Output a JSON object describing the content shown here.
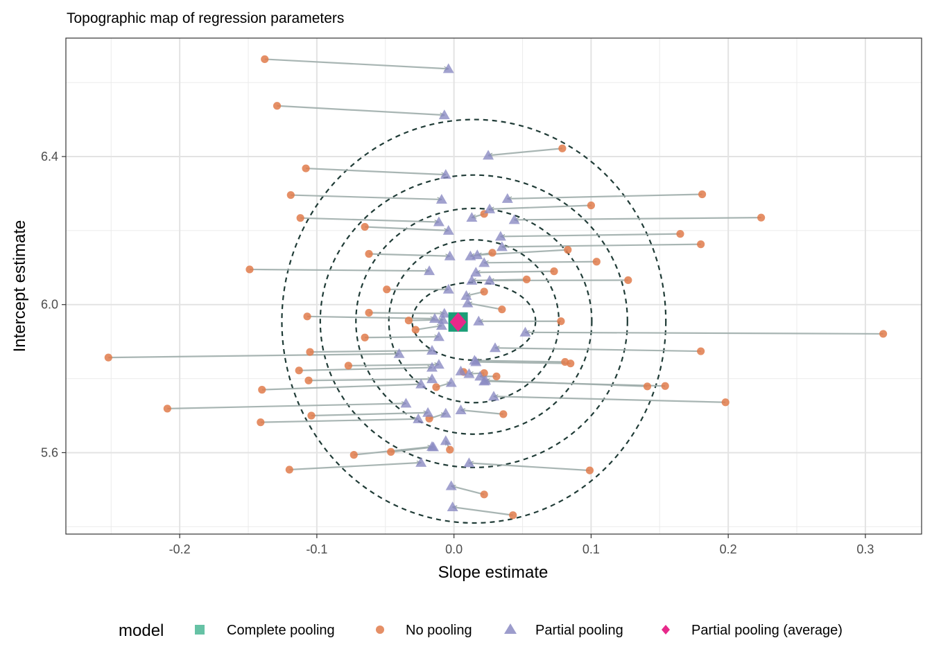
{
  "chart_data": {
    "type": "scatter",
    "title": "Topographic map of regression parameters",
    "xlabel": "Slope estimate",
    "ylabel": "Intercept estimate",
    "xlim": [
      -0.283,
      0.341
    ],
    "ylim": [
      5.38,
      6.72
    ],
    "x_ticks": [
      -0.2,
      -0.1,
      0.0,
      0.1,
      0.2,
      0.3
    ],
    "x_tick_labels": [
      "-0.2",
      "-0.1",
      "0.0",
      "0.1",
      "0.2",
      "0.3"
    ],
    "y_ticks": [
      5.6,
      6.0,
      6.4
    ],
    "y_tick_labels": [
      "5.6",
      "6.0",
      "6.4"
    ],
    "grid": true,
    "legend": {
      "title": "model",
      "position": "bottom",
      "entries": [
        {
          "label": "Complete pooling",
          "shape": "square",
          "color": "#66C2A5"
        },
        {
          "label": "No pooling",
          "shape": "circle",
          "color": "#E07B4B"
        },
        {
          "label": "Partial pooling",
          "shape": "triangle",
          "color": "#8B8BC3"
        },
        {
          "label": "Partial pooling (average)",
          "shape": "diamond",
          "color": "#E7298A"
        }
      ]
    },
    "colors": {
      "complete": "#1B9E77",
      "no_pooling": "#E07B4B",
      "partial": "#8B8BC3",
      "average": "#E7298A",
      "arrow": "#9FADAB",
      "contour": "#1F3B36"
    },
    "contour_center": [
      0.0145,
      5.955
    ],
    "contour_semi_axes": [
      [
        0.045,
        0.105
      ],
      [
        0.062,
        0.22
      ],
      [
        0.086,
        0.305
      ],
      [
        0.112,
        0.395
      ],
      [
        0.14,
        0.545
      ]
    ],
    "complete_pooling": {
      "x": 0.003,
      "y": 5.953
    },
    "partial_pooling_average": {
      "x": 0.003,
      "y": 5.953
    },
    "pairs": [
      {
        "no_pooling": [
          -0.138,
          6.663
        ],
        "partial": [
          -0.004,
          6.637
        ]
      },
      {
        "no_pooling": [
          -0.129,
          6.537
        ],
        "partial": [
          -0.007,
          6.512
        ]
      },
      {
        "no_pooling": [
          0.079,
          6.422
        ],
        "partial": [
          0.025,
          6.403
        ]
      },
      {
        "no_pooling": [
          -0.108,
          6.368
        ],
        "partial": [
          -0.006,
          6.351
        ]
      },
      {
        "no_pooling": [
          -0.119,
          6.296
        ],
        "partial": [
          -0.009,
          6.284
        ]
      },
      {
        "no_pooling": [
          0.181,
          6.298
        ],
        "partial": [
          0.039,
          6.286
        ]
      },
      {
        "no_pooling": [
          0.1,
          6.268
        ],
        "partial": [
          0.026,
          6.258
        ]
      },
      {
        "no_pooling": [
          -0.112,
          6.234
        ],
        "partial": [
          -0.011,
          6.223
        ]
      },
      {
        "no_pooling": [
          0.224,
          6.235
        ],
        "partial": [
          0.044,
          6.229
        ]
      },
      {
        "no_pooling": [
          0.022,
          6.245
        ],
        "partial": [
          0.013,
          6.235
        ]
      },
      {
        "no_pooling": [
          -0.065,
          6.21
        ],
        "partial": [
          -0.004,
          6.2
        ]
      },
      {
        "no_pooling": [
          0.165,
          6.191
        ],
        "partial": [
          0.034,
          6.184
        ]
      },
      {
        "no_pooling": [
          0.18,
          6.163
        ],
        "partial": [
          0.035,
          6.156
        ]
      },
      {
        "no_pooling": [
          0.083,
          6.148
        ],
        "partial": [
          0.017,
          6.134
        ]
      },
      {
        "no_pooling": [
          -0.062,
          6.137
        ],
        "partial": [
          -0.003,
          6.131
        ]
      },
      {
        "no_pooling": [
          0.028,
          6.14
        ],
        "partial": [
          0.012,
          6.131
        ]
      },
      {
        "no_pooling": [
          0.104,
          6.116
        ],
        "partial": [
          0.022,
          6.113
        ]
      },
      {
        "no_pooling": [
          -0.149,
          6.095
        ],
        "partial": [
          -0.018,
          6.091
        ]
      },
      {
        "no_pooling": [
          0.073,
          6.09
        ],
        "partial": [
          0.016,
          6.087
        ]
      },
      {
        "no_pooling": [
          0.127,
          6.066
        ],
        "partial": [
          0.026,
          6.065
        ]
      },
      {
        "no_pooling": [
          0.053,
          6.068
        ],
        "partial": [
          0.013,
          6.065
        ]
      },
      {
        "no_pooling": [
          -0.049,
          6.041
        ],
        "partial": [
          -0.004,
          6.041
        ]
      },
      {
        "no_pooling": [
          0.022,
          6.035
        ],
        "partial": [
          0.009,
          6.024
        ]
      },
      {
        "no_pooling": [
          0.035,
          5.987
        ],
        "partial": [
          0.01,
          6.004
        ]
      },
      {
        "no_pooling": [
          -0.062,
          5.978
        ],
        "partial": [
          -0.007,
          5.976
        ]
      },
      {
        "no_pooling": [
          -0.107,
          5.968
        ],
        "partial": [
          -0.014,
          5.962
        ]
      },
      {
        "no_pooling": [
          0.078,
          5.955
        ],
        "partial": [
          0.018,
          5.955
        ]
      },
      {
        "no_pooling": [
          -0.033,
          5.957
        ],
        "partial": [
          -0.008,
          5.959
        ]
      },
      {
        "no_pooling": [
          -0.028,
          5.932
        ],
        "partial": [
          -0.009,
          5.943
        ]
      },
      {
        "no_pooling": [
          0.313,
          5.921
        ],
        "partial": [
          0.052,
          5.925
        ]
      },
      {
        "no_pooling": [
          -0.065,
          5.911
        ],
        "partial": [
          -0.011,
          5.913
        ]
      },
      {
        "no_pooling": [
          0.18,
          5.874
        ],
        "partial": [
          0.03,
          5.883
        ]
      },
      {
        "no_pooling": [
          -0.105,
          5.872
        ],
        "partial": [
          -0.016,
          5.876
        ]
      },
      {
        "no_pooling": [
          -0.252,
          5.857
        ],
        "partial": [
          -0.04,
          5.867
        ]
      },
      {
        "no_pooling": [
          0.081,
          5.845
        ],
        "partial": [
          0.015,
          5.849
        ]
      },
      {
        "no_pooling": [
          0.085,
          5.841
        ],
        "partial": [
          0.016,
          5.845
        ]
      },
      {
        "no_pooling": [
          -0.077,
          5.835
        ],
        "partial": [
          -0.011,
          5.838
        ]
      },
      {
        "no_pooling": [
          -0.113,
          5.822
        ],
        "partial": [
          -0.016,
          5.83
        ]
      },
      {
        "no_pooling": [
          0.007,
          5.818
        ],
        "partial": [
          0.005,
          5.82
        ]
      },
      {
        "no_pooling": [
          0.031,
          5.806
        ],
        "partial": [
          0.019,
          5.806
        ]
      },
      {
        "no_pooling": [
          0.022,
          5.815
        ],
        "partial": [
          0.011,
          5.813
        ]
      },
      {
        "no_pooling": [
          -0.106,
          5.795
        ],
        "partial": [
          -0.016,
          5.799
        ]
      },
      {
        "no_pooling": [
          0.141,
          5.779
        ],
        "partial": [
          0.023,
          5.795
        ]
      },
      {
        "no_pooling": [
          0.154,
          5.78
        ],
        "partial": [
          0.022,
          5.793
        ]
      },
      {
        "no_pooling": [
          -0.013,
          5.777
        ],
        "partial": [
          -0.002,
          5.789
        ]
      },
      {
        "no_pooling": [
          -0.14,
          5.77
        ],
        "partial": [
          -0.024,
          5.785
        ]
      },
      {
        "no_pooling": [
          0.198,
          5.736
        ],
        "partial": [
          0.029,
          5.752
        ]
      },
      {
        "no_pooling": [
          -0.209,
          5.719
        ],
        "partial": [
          -0.035,
          5.733
        ]
      },
      {
        "no_pooling": [
          -0.104,
          5.7
        ],
        "partial": [
          -0.019,
          5.708
        ]
      },
      {
        "no_pooling": [
          0.036,
          5.704
        ],
        "partial": [
          0.005,
          5.715
        ]
      },
      {
        "no_pooling": [
          -0.141,
          5.682
        ],
        "partial": [
          -0.026,
          5.691
        ]
      },
      {
        "no_pooling": [
          -0.018,
          5.692
        ],
        "partial": [
          -0.006,
          5.706
        ]
      },
      {
        "no_pooling": [
          -0.003,
          5.608
        ],
        "partial": [
          -0.006,
          5.632
        ]
      },
      {
        "no_pooling": [
          -0.046,
          5.602
        ],
        "partial": [
          -0.015,
          5.615
        ]
      },
      {
        "no_pooling": [
          -0.073,
          5.594
        ],
        "partial": [
          -0.016,
          5.616
        ]
      },
      {
        "no_pooling": [
          -0.12,
          5.554
        ],
        "partial": [
          -0.024,
          5.573
        ]
      },
      {
        "no_pooling": [
          0.099,
          5.552
        ],
        "partial": [
          0.011,
          5.572
        ]
      },
      {
        "no_pooling": [
          0.022,
          5.487
        ],
        "partial": [
          -0.002,
          5.51
        ]
      },
      {
        "no_pooling": [
          0.043,
          5.431
        ],
        "partial": [
          -0.001,
          5.453
        ]
      }
    ]
  }
}
